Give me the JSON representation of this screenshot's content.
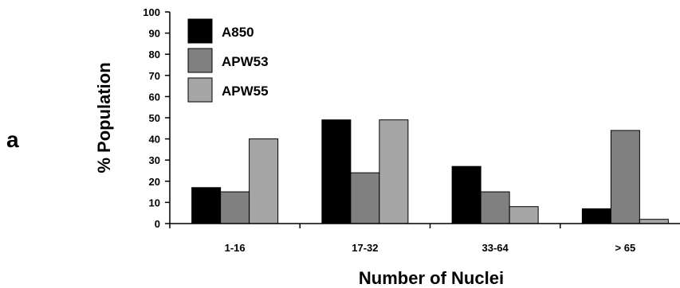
{
  "panel_label": "a",
  "chart_data": {
    "type": "bar",
    "categories": [
      "1-16",
      "17-32",
      "33-64",
      "> 65"
    ],
    "series": [
      {
        "name": "A850",
        "color": "#000000",
        "values": [
          17,
          49,
          27,
          7
        ]
      },
      {
        "name": "APW53",
        "color": "#808080",
        "values": [
          15,
          24,
          15,
          44
        ]
      },
      {
        "name": "APW55",
        "color": "#a6a6a6",
        "values": [
          40,
          49,
          8,
          2
        ]
      }
    ],
    "ylim": [
      0,
      100
    ],
    "yticks": [
      0,
      10,
      20,
      30,
      40,
      50,
      60,
      70,
      80,
      90,
      100
    ],
    "xlabel": "Number of Nuclei",
    "ylabel": "% Population",
    "legend_position": "top-left",
    "grid": false
  }
}
